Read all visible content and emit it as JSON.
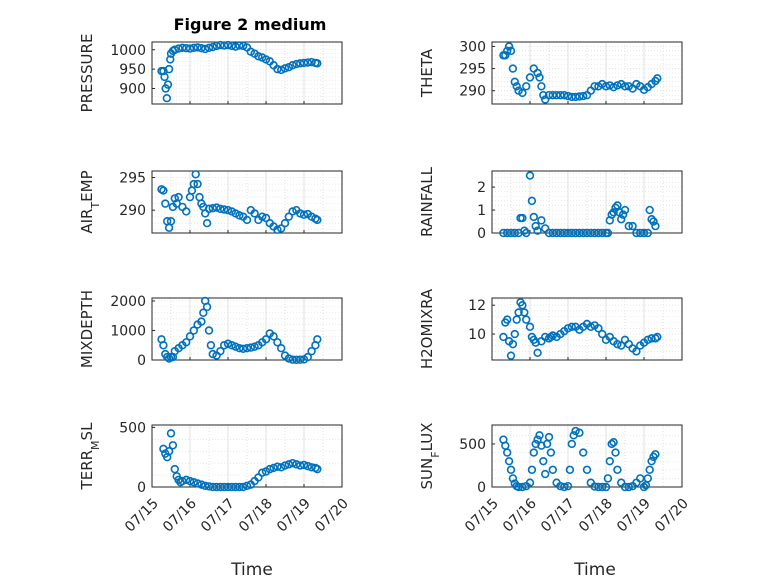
{
  "figure": {
    "title": "Figure 2 medium",
    "xlabel": "Time",
    "xticks": [
      "07/15",
      "07/16",
      "07/17",
      "07/18",
      "07/19",
      "07/20"
    ],
    "colors": {
      "marker": "#0072BD",
      "grid": "#d9d9d9",
      "axis": "#262626"
    }
  },
  "chart_data": [
    {
      "type": "scatter",
      "id": "pressure",
      "ylabel": "PRESSURE",
      "xlim": [
        0,
        5
      ],
      "ylim": [
        860,
        1020
      ],
      "yticks": [
        900,
        950,
        1000
      ],
      "grid": true,
      "x": [
        0.25,
        0.3,
        0.33,
        0.36,
        0.39,
        0.42,
        0.45,
        0.48,
        0.5,
        0.55,
        0.6,
        0.7,
        0.8,
        0.9,
        1.0,
        1.1,
        1.2,
        1.3,
        1.4,
        1.5,
        1.6,
        1.7,
        1.8,
        1.9,
        2.0,
        2.1,
        2.2,
        2.3,
        2.4,
        2.5,
        2.6,
        2.7,
        2.8,
        2.9,
        3.0,
        3.1,
        3.2,
        3.3,
        3.4,
        3.5,
        3.6,
        3.7,
        3.8,
        3.9,
        4.0,
        4.1,
        4.2,
        4.3,
        4.35
      ],
      "y": [
        945,
        945,
        930,
        900,
        875,
        910,
        950,
        975,
        990,
        997,
        1000,
        1003,
        1005,
        1004,
        1003,
        1005,
        1006,
        1004,
        1002,
        1005,
        1007,
        1010,
        1012,
        1011,
        1012,
        1010,
        1008,
        1011,
        1010,
        1006,
        995,
        990,
        983,
        980,
        975,
        970,
        960,
        950,
        948,
        952,
        955,
        960,
        963,
        965,
        966,
        967,
        968,
        966,
        965
      ]
    },
    {
      "type": "scatter",
      "id": "theta",
      "ylabel": "THETA",
      "xlim": [
        0,
        5
      ],
      "ylim": [
        287,
        301
      ],
      "yticks": [
        290,
        295,
        300
      ],
      "grid": true,
      "x": [
        0.3,
        0.35,
        0.4,
        0.45,
        0.5,
        0.55,
        0.6,
        0.65,
        0.7,
        0.8,
        0.9,
        1.0,
        1.1,
        1.2,
        1.25,
        1.3,
        1.35,
        1.4,
        1.5,
        1.6,
        1.7,
        1.8,
        1.9,
        2.0,
        2.1,
        2.2,
        2.3,
        2.4,
        2.5,
        2.6,
        2.7,
        2.8,
        2.9,
        3.0,
        3.1,
        3.2,
        3.3,
        3.4,
        3.5,
        3.6,
        3.7,
        3.8,
        3.9,
        4.0,
        4.1,
        4.2,
        4.3,
        4.35
      ],
      "y": [
        298,
        298,
        299,
        300,
        299,
        295,
        292,
        291,
        290,
        289.5,
        291,
        293,
        295,
        294,
        293,
        291,
        289,
        288,
        289,
        289,
        289,
        289,
        289,
        288.8,
        288.6,
        288.6,
        288.7,
        288.8,
        289,
        290,
        291,
        291,
        291.5,
        291,
        291.2,
        290.8,
        291.2,
        291.5,
        291,
        291,
        290.5,
        291.5,
        291,
        290.2,
        290.8,
        291.5,
        292.2,
        292.8
      ]
    },
    {
      "type": "scatter",
      "id": "air_temp",
      "ylabel": "AIR_TEMP",
      "xlim": [
        0,
        5
      ],
      "ylim": [
        286.5,
        296
      ],
      "yticks": [
        290,
        295
      ],
      "grid": true,
      "x": [
        0.25,
        0.3,
        0.35,
        0.4,
        0.45,
        0.5,
        0.55,
        0.6,
        0.65,
        0.7,
        0.8,
        0.9,
        1.0,
        1.05,
        1.1,
        1.15,
        1.2,
        1.25,
        1.3,
        1.35,
        1.4,
        1.45,
        1.5,
        1.6,
        1.7,
        1.8,
        1.9,
        2.0,
        2.1,
        2.2,
        2.3,
        2.4,
        2.5,
        2.6,
        2.7,
        2.8,
        2.9,
        3.0,
        3.1,
        3.2,
        3.3,
        3.4,
        3.5,
        3.6,
        3.7,
        3.8,
        3.9,
        4.0,
        4.1,
        4.2,
        4.3,
        4.35
      ],
      "y": [
        293.2,
        293,
        291,
        288.3,
        287.3,
        288.3,
        290.5,
        291.8,
        291,
        292,
        290.5,
        289.8,
        292,
        293,
        294,
        295.5,
        294,
        292,
        291,
        290.5,
        289.5,
        288,
        290.2,
        290.3,
        290.4,
        290.2,
        290.1,
        290,
        289.8,
        289.5,
        289.2,
        289,
        288.5,
        290,
        289.5,
        288.5,
        289,
        288.8,
        288,
        287.5,
        287,
        287.2,
        288,
        289,
        289.8,
        290,
        289.5,
        289.3,
        289.4,
        289,
        288.7,
        288.5
      ]
    },
    {
      "type": "scatter",
      "id": "rainfall",
      "ylabel": "RAINFALL",
      "xlim": [
        0,
        5
      ],
      "ylim": [
        0,
        2.7
      ],
      "yticks": [
        0,
        1,
        2
      ],
      "grid": true,
      "x": [
        0.3,
        0.4,
        0.5,
        0.6,
        0.7,
        0.75,
        0.8,
        0.85,
        0.9,
        1.0,
        1.05,
        1.1,
        1.15,
        1.2,
        1.3,
        1.4,
        1.5,
        1.6,
        1.7,
        1.8,
        1.9,
        2.0,
        2.1,
        2.2,
        2.3,
        2.4,
        2.5,
        2.6,
        2.7,
        2.8,
        2.9,
        3.0,
        3.05,
        3.1,
        3.15,
        3.2,
        3.25,
        3.3,
        3.35,
        3.4,
        3.45,
        3.5,
        3.6,
        3.7,
        3.8,
        3.9,
        4.0,
        4.1,
        4.15,
        4.2,
        4.25,
        4.3
      ],
      "y": [
        0,
        0,
        0,
        0,
        0,
        0.65,
        0.65,
        0.1,
        0,
        2.5,
        1.4,
        0.7,
        0.3,
        0.1,
        0.55,
        0.2,
        0,
        0,
        0,
        0,
        0,
        0,
        0,
        0,
        0,
        0,
        0,
        0,
        0,
        0,
        0,
        0,
        0,
        0.55,
        0.8,
        0.9,
        1.1,
        1.2,
        0.9,
        0.6,
        0.8,
        1.0,
        0.3,
        0.3,
        0,
        0,
        0,
        0,
        1.0,
        0.6,
        0.5,
        0.3
      ]
    },
    {
      "type": "scatter",
      "id": "mixdepth",
      "ylabel": "MIXDEPTH",
      "xlim": [
        0,
        5
      ],
      "ylim": [
        0,
        2100
      ],
      "yticks": [
        0,
        1000,
        2000
      ],
      "grid": true,
      "x": [
        0.25,
        0.3,
        0.35,
        0.4,
        0.45,
        0.5,
        0.55,
        0.6,
        0.7,
        0.8,
        0.9,
        1.0,
        1.1,
        1.2,
        1.3,
        1.35,
        1.4,
        1.45,
        1.5,
        1.55,
        1.6,
        1.7,
        1.8,
        1.9,
        2.0,
        2.1,
        2.2,
        2.3,
        2.4,
        2.5,
        2.6,
        2.7,
        2.8,
        2.9,
        3.0,
        3.1,
        3.2,
        3.3,
        3.4,
        3.5,
        3.6,
        3.7,
        3.8,
        3.9,
        4.0,
        4.1,
        4.2,
        4.3,
        4.35
      ],
      "y": [
        700,
        500,
        200,
        100,
        50,
        100,
        100,
        300,
        400,
        500,
        600,
        800,
        1000,
        1200,
        1300,
        1600,
        2000,
        1800,
        1000,
        500,
        200,
        150,
        300,
        500,
        550,
        500,
        450,
        400,
        380,
        400,
        420,
        450,
        500,
        600,
        700,
        900,
        800,
        600,
        400,
        150,
        50,
        10,
        5,
        10,
        20,
        100,
        300,
        500,
        700
      ]
    },
    {
      "type": "scatter",
      "id": "h2omixra",
      "ylabel": "H2OMIXRA",
      "xlim": [
        0,
        5
      ],
      "ylim": [
        8.2,
        12.5
      ],
      "yticks": [
        10,
        12
      ],
      "grid": true,
      "x": [
        0.3,
        0.35,
        0.4,
        0.45,
        0.5,
        0.55,
        0.6,
        0.65,
        0.7,
        0.75,
        0.8,
        0.85,
        0.9,
        1.0,
        1.05,
        1.1,
        1.15,
        1.2,
        1.3,
        1.4,
        1.5,
        1.55,
        1.6,
        1.7,
        1.8,
        1.9,
        2.0,
        2.1,
        2.2,
        2.3,
        2.4,
        2.5,
        2.6,
        2.7,
        2.8,
        2.9,
        3.0,
        3.1,
        3.2,
        3.3,
        3.4,
        3.5,
        3.6,
        3.7,
        3.8,
        3.9,
        4.0,
        4.1,
        4.2,
        4.3,
        4.35
      ],
      "y": [
        9.8,
        10.8,
        11,
        9.5,
        8.5,
        9.3,
        10,
        11,
        11.5,
        12.2,
        12,
        11.5,
        11,
        10.5,
        9.8,
        9.6,
        9.4,
        8.7,
        9.5,
        9.8,
        9.7,
        9.8,
        9.9,
        9.8,
        10,
        10.2,
        10.4,
        10.5,
        10.5,
        10.3,
        10.5,
        10.7,
        10.5,
        10.6,
        10.4,
        10.0,
        9.6,
        9.8,
        9.5,
        9.3,
        9.2,
        9.6,
        9.3,
        9.0,
        8.8,
        9.2,
        9.4,
        9.6,
        9.7,
        9.7,
        9.8
      ]
    },
    {
      "type": "scatter",
      "id": "terr_msl",
      "ylabel": "TERR_MSL",
      "xlim": [
        0,
        5
      ],
      "ylim": [
        0,
        520
      ],
      "yticks": [
        0,
        500
      ],
      "grid": true,
      "x": [
        0.3,
        0.35,
        0.4,
        0.45,
        0.5,
        0.55,
        0.6,
        0.65,
        0.7,
        0.75,
        0.8,
        0.9,
        1.0,
        1.1,
        1.2,
        1.3,
        1.4,
        1.5,
        1.6,
        1.7,
        1.8,
        1.9,
        2.0,
        2.1,
        2.2,
        2.3,
        2.4,
        2.5,
        2.6,
        2.7,
        2.8,
        2.9,
        3.0,
        3.1,
        3.2,
        3.3,
        3.4,
        3.5,
        3.6,
        3.7,
        3.8,
        3.9,
        4.0,
        4.1,
        4.2,
        4.3,
        4.35
      ],
      "y": [
        320,
        280,
        250,
        300,
        450,
        350,
        150,
        90,
        60,
        40,
        50,
        60,
        50,
        40,
        30,
        20,
        10,
        5,
        0,
        0,
        0,
        0,
        0,
        0,
        0,
        0,
        0,
        10,
        20,
        50,
        80,
        120,
        130,
        150,
        160,
        170,
        165,
        180,
        190,
        200,
        190,
        180,
        185,
        175,
        165,
        160,
        150
      ]
    },
    {
      "type": "scatter",
      "id": "sun_flux",
      "ylabel": "SUN_FLUX",
      "xlim": [
        0,
        5
      ],
      "ylim": [
        0,
        720
      ],
      "yticks": [
        0,
        500
      ],
      "grid": true,
      "x": [
        0.3,
        0.35,
        0.4,
        0.45,
        0.5,
        0.55,
        0.6,
        0.65,
        0.7,
        0.8,
        0.9,
        1.0,
        1.05,
        1.1,
        1.15,
        1.2,
        1.25,
        1.3,
        1.35,
        1.4,
        1.45,
        1.5,
        1.55,
        1.6,
        1.7,
        1.8,
        1.9,
        2.0,
        2.05,
        2.1,
        2.15,
        2.2,
        2.3,
        2.4,
        2.5,
        2.6,
        2.7,
        2.8,
        2.9,
        3.0,
        3.05,
        3.1,
        3.15,
        3.2,
        3.25,
        3.3,
        3.4,
        3.5,
        3.6,
        3.7,
        3.8,
        3.9,
        4.0,
        4.05,
        4.1,
        4.15,
        4.2,
        4.25,
        4.3
      ],
      "y": [
        550,
        480,
        400,
        300,
        200,
        100,
        40,
        10,
        0,
        0,
        10,
        50,
        200,
        400,
        500,
        550,
        600,
        480,
        300,
        150,
        500,
        580,
        400,
        200,
        50,
        10,
        0,
        10,
        200,
        500,
        600,
        650,
        630,
        400,
        200,
        50,
        5,
        0,
        0,
        0,
        100,
        300,
        500,
        520,
        400,
        200,
        50,
        0,
        0,
        10,
        50,
        100,
        0,
        20,
        100,
        200,
        300,
        350,
        380
      ]
    }
  ]
}
